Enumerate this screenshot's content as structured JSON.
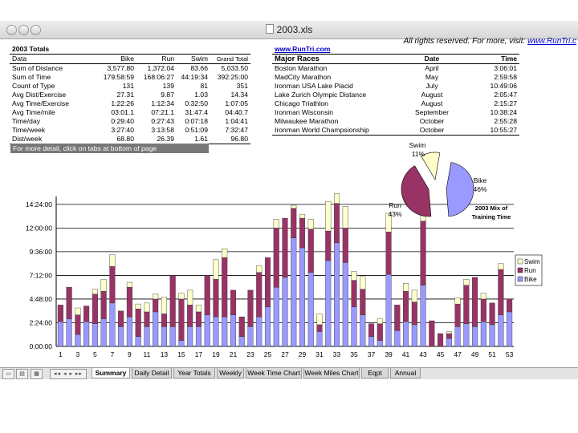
{
  "window": {
    "title": "2003.xls"
  },
  "top_note": {
    "text": "All rights reserved. For more, visit: ",
    "link": "www.RunTri.c"
  },
  "totals": {
    "title": "2003 Totals",
    "headers": [
      "Data",
      "Bike",
      "Run",
      "Swim",
      "Grand Total"
    ],
    "rows": [
      [
        "Sum of Distance",
        "3,577.80",
        "1,372.04",
        "83.66",
        "5,033.50"
      ],
      [
        "Sum of Time",
        "179:58:59",
        "168:06:27",
        "44:19:34",
        "392:25:00"
      ],
      [
        "Count of Type",
        "131",
        "139",
        "81",
        "351"
      ],
      [
        "Avg Dist/Exercise",
        "27.31",
        "9.87",
        "1.03",
        "14.34"
      ],
      [
        "Avg Time/Exercise",
        "1:22:26",
        "1:12:34",
        "0:32:50",
        "1:07:05"
      ],
      [
        "Avg Time/mile",
        "03:01.1",
        "07:21.1",
        "31:47.4",
        "04:40.7"
      ],
      [
        "Time/day",
        "0:29:40",
        "0:27:43",
        "0:07:18",
        "1:04:41"
      ],
      [
        "Time/week",
        "3:27:40",
        "3:13:58",
        "0:51:09",
        "7:32:47"
      ],
      [
        "Dist/week",
        "68.80",
        "26.39",
        "1.61",
        "96.80"
      ]
    ],
    "note": "For more detail, click on tabs at bottom of page"
  },
  "races": {
    "url": "www.RunTri.com",
    "headers": [
      "Major Races",
      "Date",
      "Time"
    ],
    "rows": [
      [
        "Boston Marathon",
        "April",
        "3:06:01"
      ],
      [
        "MadCity Marathon",
        "May",
        "2:59:58"
      ],
      [
        "Ironman USA Lake Placid",
        "July",
        "10:49:06"
      ],
      [
        "Lake Zurich Olympic Distance",
        "August",
        "2:05:47"
      ],
      [
        "Chicago Triathlon",
        "August",
        "2:15:27"
      ],
      [
        "Ironman Wisconsin",
        "September",
        "10:38:24"
      ],
      [
        "Milwaukee Marathon",
        "October",
        "2:55:28"
      ],
      [
        "Ironman World Champsionship",
        "October",
        "10:55:27"
      ]
    ]
  },
  "tabs": [
    "Summary",
    "Daily Detail",
    "Year Totals",
    "Weekly",
    "Week Time Chart",
    "Week Miles Chart",
    "Eqpt",
    "Annual"
  ],
  "active_tab": "Summary",
  "colors": {
    "bike": "#9999ff",
    "run": "#993366",
    "swim": "#ffffcc"
  },
  "chart_data": [
    {
      "type": "bar",
      "stacked": true,
      "x_tick_labels": [
        "1",
        "3",
        "5",
        "7",
        "9",
        "11",
        "13",
        "15",
        "17",
        "19",
        "21",
        "23",
        "25",
        "27",
        "29",
        "31",
        "33",
        "35",
        "37",
        "39",
        "41",
        "43",
        "45",
        "47",
        "49",
        "51",
        "53"
      ],
      "y_tick_labels": [
        "0:00:00",
        "2:24:00",
        "4:48:00",
        "7:12:00",
        "9:36:00",
        "12:00:00",
        "14:24:00"
      ],
      "ylim_hours": [
        0,
        15.2
      ],
      "grid": true,
      "legend_position": "right",
      "series": [
        {
          "name": "Bike",
          "color": "#9999ff",
          "hours": [
            2.5,
            2.8,
            1.2,
            2.5,
            2.3,
            2.8,
            4.4,
            2.0,
            3.0,
            1.0,
            2.0,
            3.5,
            2.0,
            2.0,
            0.6,
            2.0,
            2.0,
            3.2,
            3.0,
            3.0,
            3.2,
            1.0,
            2.0,
            3.0,
            4.0,
            6.0,
            7.0,
            11.0,
            10.0,
            7.5,
            1.5,
            8.7,
            10.5,
            8.5,
            4.0,
            3.2,
            1.0,
            0.6,
            7.3,
            1.6,
            2.5,
            2.2,
            6.2,
            0,
            0,
            0.8,
            2.0,
            2.3,
            2.0,
            2.5,
            2.2,
            3.2,
            3.5
          ]
        },
        {
          "name": "Run",
          "color": "#993366",
          "hours": [
            1.7,
            3.2,
            2.0,
            1.6,
            3.0,
            2.8,
            3.7,
            1.6,
            3.0,
            2.8,
            1.5,
            1.3,
            1.3,
            5.2,
            4.2,
            2.2,
            1.5,
            4.0,
            3.8,
            6.0,
            2.5,
            2.0,
            3.7,
            4.5,
            5.0,
            6.0,
            6.0,
            3.0,
            3.0,
            4.4,
            0.7,
            3.0,
            4.0,
            3.5,
            2.7,
            2.6,
            1.3,
            1.7,
            4.3,
            2.6,
            3.1,
            2.3,
            6.5,
            2.6,
            1.3,
            0.5,
            2.3,
            3.9,
            5.0,
            2.3,
            2.2,
            4.6,
            1.3
          ]
        },
        {
          "name": "Swim",
          "color": "#ffffcc",
          "hours": [
            0,
            0,
            0.7,
            0,
            0.5,
            1.2,
            1.2,
            0,
            0.5,
            0.5,
            0.9,
            0.5,
            1.7,
            0,
            0.6,
            1.5,
            0.7,
            0,
            2.0,
            0.9,
            0,
            0,
            0,
            0.7,
            0,
            0.9,
            0,
            0.3,
            0.4,
            1.0,
            1.1,
            3.0,
            1.0,
            2.2,
            0.9,
            1.3,
            0,
            0.5,
            1.9,
            0,
            0.8,
            1.2,
            1.8,
            0,
            0,
            0.2,
            0.6,
            0.6,
            0,
            0.6,
            0,
            0.6,
            0
          ]
        }
      ]
    },
    {
      "type": "pie",
      "title": "2003 Mix of Training Time",
      "slices": [
        {
          "label": "Bike",
          "percent": "46%",
          "hours": 179.98,
          "color": "#9999ff"
        },
        {
          "label": "Run",
          "percent": "43%",
          "hours": 168.11,
          "color": "#993366"
        },
        {
          "label": "Swim",
          "percent": "11%",
          "hours": 44.33,
          "color": "#ffffcc"
        }
      ]
    }
  ]
}
